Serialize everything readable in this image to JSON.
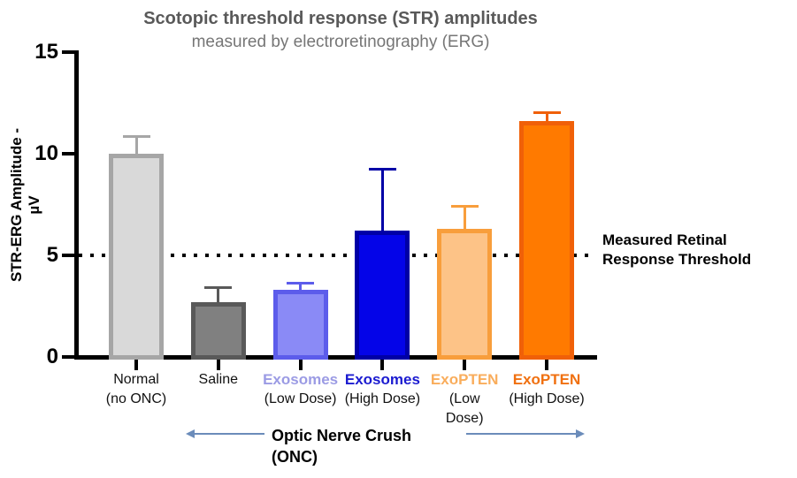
{
  "title": "Scotopic threshold response (STR) amplitudes",
  "subtitle": "measured by electroretinography (ERG)",
  "y_axis": {
    "label_line1": "STR-ERG Amplitude -",
    "label_line2": "µV"
  },
  "threshold": {
    "value": 5,
    "label_line1": "Measured Retinal",
    "label_line2": "Response Threshold"
  },
  "onc_annotation": {
    "line1": "Optic Nerve Crush",
    "line2": "(ONC)"
  },
  "colors": {
    "title": "#595959",
    "subtitle": "#767676",
    "axis": "#000000",
    "arrow": "#6b8cba",
    "threshold_dots": "#000000"
  },
  "chart_data": {
    "type": "bar",
    "title": "Scotopic threshold response (STR) amplitudes",
    "subtitle": "measured by electroretinography (ERG)",
    "xlabel": "",
    "ylabel": "STR-ERG Amplitude - µV",
    "ylim": [
      0,
      15
    ],
    "yticks": [
      0,
      5,
      10,
      15
    ],
    "grid": false,
    "threshold_line": {
      "y": 5,
      "style": "dotted",
      "label": "Measured Retinal Response Threshold"
    },
    "group_span_annotation": {
      "label": "Optic Nerve Crush (ONC)",
      "applies_to": [
        "Saline",
        "Exosomes (Low Dose)",
        "Exosomes (High Dose)",
        "ExoPTEN (Low Dose)",
        "ExoPTEN (High Dose)"
      ]
    },
    "categories": [
      "Normal (no ONC)",
      "Saline",
      "Exosomes (Low Dose)",
      "Exosomes (High Dose)",
      "ExoPTEN (Low Dose)",
      "ExoPTEN (High Dose)"
    ],
    "values": [
      10.0,
      2.7,
      3.3,
      6.2,
      6.3,
      11.6
    ],
    "errors_upper": [
      0.9,
      0.8,
      0.4,
      3.1,
      1.2,
      0.5
    ],
    "bars": [
      {
        "name": "Normal",
        "dose_lines": [
          "(no ONC)"
        ],
        "value": 10.0,
        "error_up": 0.9,
        "fill": "#d9d9d9",
        "border": "#a6a6a6",
        "label_color": "#111111",
        "label_bold": false
      },
      {
        "name": "Saline",
        "dose_lines": [],
        "value": 2.7,
        "error_up": 0.8,
        "fill": "#808080",
        "border": "#595959",
        "label_color": "#111111",
        "label_bold": false
      },
      {
        "name": "Exosomes",
        "dose_lines": [
          "(Low Dose)"
        ],
        "value": 3.3,
        "error_up": 0.4,
        "fill": "#8a8af6",
        "border": "#5c5ceb",
        "label_color": "#9b9be4",
        "label_bold": true
      },
      {
        "name": "Exosomes",
        "dose_lines": [
          "(High Dose)"
        ],
        "value": 6.2,
        "error_up": 3.1,
        "fill": "#0404e8",
        "border": "#0000a6",
        "label_color": "#1b1bd0",
        "label_bold": true
      },
      {
        "name": "ExoPTEN",
        "dose_lines": [
          "(Low",
          "Dose)"
        ],
        "value": 6.3,
        "error_up": 1.2,
        "fill": "#fdc387",
        "border": "#f89e3c",
        "label_color": "#f9ad5c",
        "label_bold": true
      },
      {
        "name": "ExoPTEN",
        "dose_lines": [
          "(High Dose)"
        ],
        "value": 11.6,
        "error_up": 0.5,
        "fill": "#ff7a00",
        "border": "#f06008",
        "label_color": "#f07010",
        "label_bold": true
      }
    ]
  }
}
